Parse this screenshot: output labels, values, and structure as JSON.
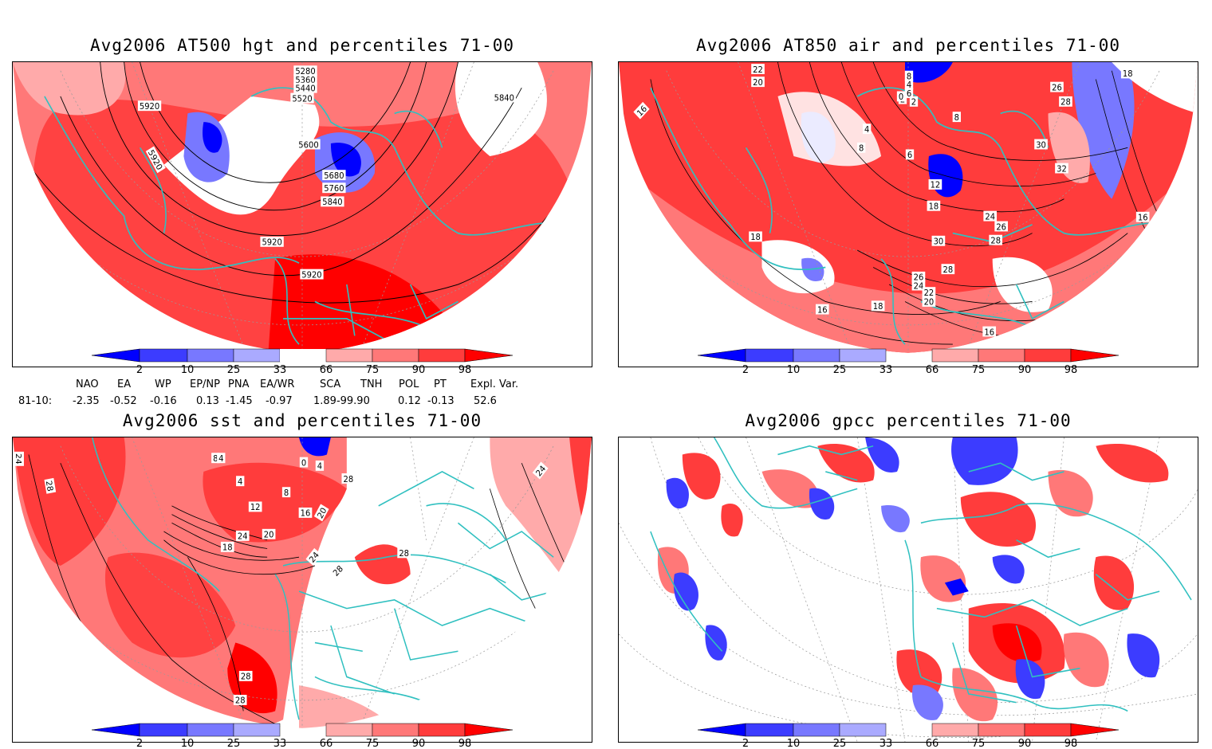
{
  "panels": [
    {
      "id": "tl",
      "title": "Avg2006 AT500 hgt and percentiles 71-00",
      "contour_labels": [
        "5280",
        "5360",
        "5440",
        "5520",
        "5920",
        "5840",
        "5920",
        "5600",
        "5680",
        "5760",
        "5840",
        "5920",
        "5920"
      ]
    },
    {
      "id": "tr",
      "title": "Avg2006 AT850 air and percentiles 71-00",
      "contour_labels": [
        "22",
        "20",
        "16",
        "8",
        "4",
        "6",
        "2",
        "0",
        "2",
        "8",
        "4",
        "8",
        "6",
        "12",
        "18",
        "18",
        "24",
        "26",
        "28",
        "30",
        "28",
        "26",
        "24",
        "22",
        "20",
        "18",
        "16",
        "16",
        "30",
        "32",
        "28",
        "26",
        "18",
        "16"
      ]
    },
    {
      "id": "bl",
      "title": "Avg2006 sst and percentiles 71-00",
      "contour_labels": [
        "24",
        "28",
        "8",
        "4",
        "0",
        "4",
        "4",
        "8",
        "12",
        "16",
        "20",
        "24",
        "18",
        "20",
        "24",
        "28",
        "28",
        "28",
        "28",
        "28",
        "24"
      ]
    },
    {
      "id": "br",
      "title": "Avg2006 gpcc percentiles 71-00",
      "contour_labels": []
    }
  ],
  "colorbar": {
    "ticks": [
      "2",
      "10",
      "25",
      "33",
      "66",
      "75",
      "90",
      "98"
    ],
    "colors": {
      "blue_dark": "#0000ff",
      "blue_mid": "#3c3cff",
      "blue_light": "#7878ff",
      "blue_pale": "#aaaaff",
      "red_pale": "#ffaaaa",
      "red_light": "#ff7878",
      "red_mid": "#ff3c3c",
      "red_dark": "#ff0000"
    }
  },
  "indices": {
    "headers": [
      "NAO",
      "EA",
      "WP",
      "EP/NP",
      "PNA",
      "EA/WR",
      "SCA",
      "TNH",
      "POL",
      "PT",
      "Expl. Var."
    ],
    "row_label": "81-10:",
    "values": [
      "-2.35",
      "-0.52",
      "-0.16",
      "0.13",
      "-1.45",
      "-0.97",
      "1.89-99.90",
      "0.12",
      "-0.13",
      "52.6"
    ]
  },
  "colors": {
    "coast": "#30c0c0",
    "contour": "#000000",
    "grid": "#999999"
  }
}
